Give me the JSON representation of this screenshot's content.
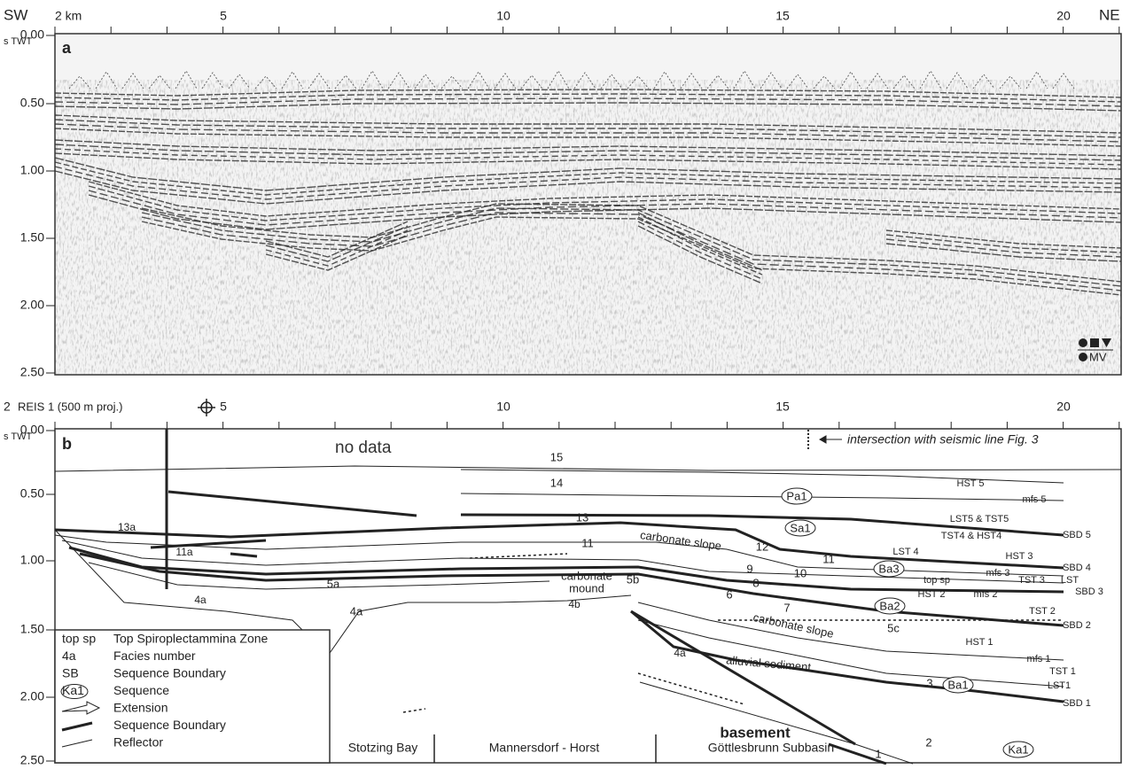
{
  "panel_a": {
    "label": "a",
    "left": "SW",
    "right": "NE",
    "x_ticks": [
      "2 km",
      "5",
      "10",
      "15",
      "20"
    ],
    "y_ticks": [
      "0.00",
      "0.50",
      "1.00",
      "1.50",
      "2.00",
      "2.50"
    ],
    "y_unit": "s TWT",
    "logo": "MV"
  },
  "panel_b": {
    "label": "b",
    "x_ticks": [
      "2",
      "5",
      "10",
      "15",
      "20"
    ],
    "well": "REIS 1 (500 m proj.)",
    "y_ticks": [
      "0.00",
      "0.50",
      "1.00",
      "1.50",
      "2.00",
      "2.50"
    ],
    "y_unit": "s TWT",
    "no_data": "no data",
    "intersection": "intersection with seismic line Fig. 3",
    "labels": [
      "15",
      "14",
      "13",
      "13a",
      "11a",
      "11",
      "12",
      "carbonate slope",
      "9",
      "10",
      "11",
      "8",
      "6",
      "7",
      "5a",
      "carbonate",
      "mound",
      "4b",
      "5b",
      "4a",
      "4a",
      "3",
      "carbonate slope",
      "5c",
      "4a",
      "alluvial sediment",
      "3",
      "basement",
      "2",
      "1"
    ],
    "sequences": [
      "Pa1",
      "Sa1",
      "Ba3",
      "Ba2",
      "Ba1",
      "Ka1"
    ],
    "systems_tracts": [
      "HST 5",
      "mfs 5",
      "LST5 & TST5",
      "SBD 5",
      "TST4 & HST4",
      "LST 4",
      "SBD 4",
      "HST 3",
      "mfs 3",
      "top sp",
      "TST 3",
      "LST",
      "SBD 3",
      "HST 2",
      "mfs 2",
      "TST 2",
      "SBD 2",
      "HST 1",
      "mfs 1",
      "TST 1",
      "LST1",
      "SBD 1"
    ],
    "legend": [
      {
        "key": "top sp",
        "text": "Top Spiroplectammina Zone"
      },
      {
        "key": "4a",
        "text": "Facies number"
      },
      {
        "key": "SB",
        "text": "Sequence Boundary"
      },
      {
        "key": "Ka1",
        "text": "Sequence"
      },
      {
        "text": "Extension"
      },
      {
        "text": "Sequence Boundary"
      },
      {
        "text": "Reflector"
      }
    ],
    "regions": [
      "Stotzing Bay",
      "Mannersdorf - Horst",
      "Göttlesbrunn Subbasin"
    ]
  }
}
